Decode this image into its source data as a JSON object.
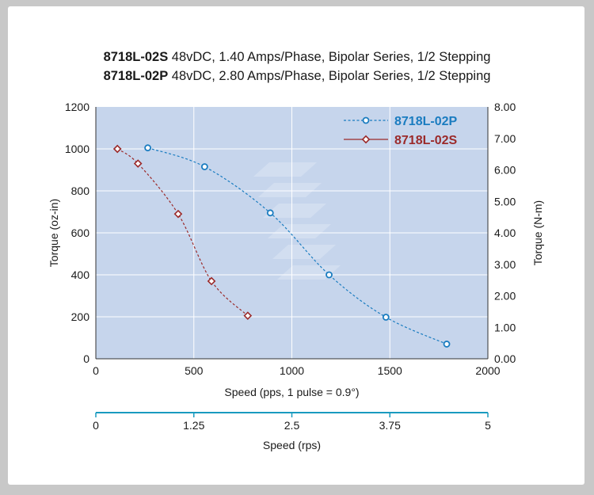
{
  "colors": {
    "background": "#c8c8c8",
    "card": "#ffffff",
    "plot_area": "#c6d5ec",
    "series_p": "#1a7cc0",
    "series_s": "#9b2a2a",
    "rps_axis": "#1a9bbf"
  },
  "title": {
    "line1_model": "8718L-02S",
    "line1_desc": " 48vDC, 1.40 Amps/Phase, Bipolar Series, 1/2 Stepping",
    "line2_model": "8718L-02P",
    "line2_desc": " 48vDC, 2.80 Amps/Phase, Bipolar Series, 1/2 Stepping"
  },
  "chart_data": {
    "type": "line",
    "xlabel": "Speed (pps, 1 pulse = 0.9°)",
    "ylabel_left": "Torque (oz-in)",
    "ylabel_right": "Torque (N-m)",
    "xlim": [
      0,
      2000
    ],
    "ylim": [
      0,
      1200
    ],
    "ylim_right": [
      0,
      8
    ],
    "x_ticks": [
      "0",
      "500",
      "1000",
      "1500",
      "2000"
    ],
    "y_ticks": [
      "0",
      "200",
      "400",
      "600",
      "800",
      "1000",
      "1200"
    ],
    "y_right_ticks": [
      "0.00",
      "1.00",
      "2.00",
      "3.00",
      "4.00",
      "5.00",
      "6.00",
      "7.00",
      "8.00"
    ],
    "grid": true,
    "legend_position": "top-right",
    "secondary_x_axis": {
      "xlabel": "Speed (rps)",
      "xlim": [
        0,
        5
      ],
      "ticks": [
        "0",
        "1.25",
        "2.5",
        "3.75",
        "5"
      ]
    },
    "series": [
      {
        "name": "8718L-02P",
        "marker": "circle",
        "line_style": "dashed",
        "x": [
          265,
          555,
          890,
          1190,
          1480,
          1790
        ],
        "y": [
          1005,
          915,
          695,
          400,
          198,
          70
        ]
      },
      {
        "name": "8718L-02S",
        "marker": "diamond",
        "line_style": "dashed",
        "x": [
          110,
          215,
          420,
          590,
          775
        ],
        "y": [
          1000,
          930,
          690,
          370,
          205
        ]
      }
    ]
  }
}
